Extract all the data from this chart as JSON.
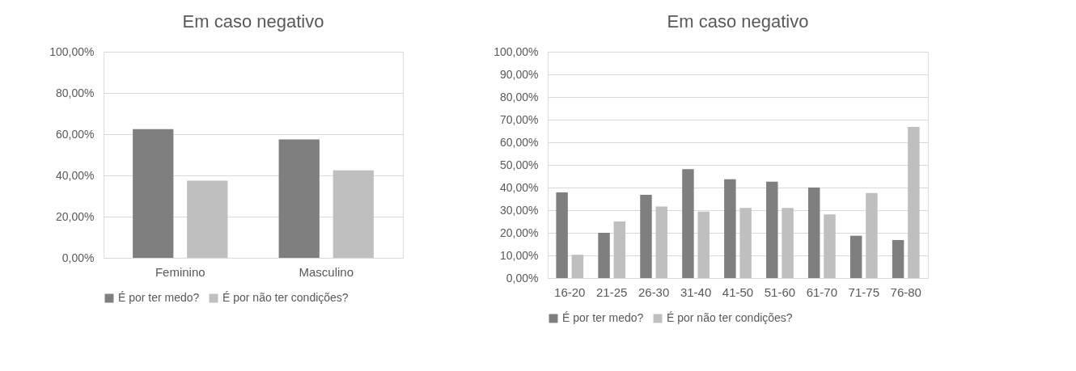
{
  "chart_data": [
    {
      "type": "bar",
      "title": "Em caso negativo",
      "categories": [
        "Feminino",
        "Masculino"
      ],
      "series": [
        {
          "name": "É por ter medo?",
          "color": "#7f7f7f",
          "values": [
            62.5,
            57.5
          ]
        },
        {
          "name": "É por não ter condições?",
          "color": "#bfbfbf",
          "values": [
            37.5,
            42.5
          ]
        }
      ],
      "ylim": [
        0,
        100
      ],
      "yticks": [
        {
          "value": 0,
          "label": "0,00%"
        },
        {
          "value": 20,
          "label": "20,00%"
        },
        {
          "value": 40,
          "label": "40,00%"
        },
        {
          "value": 60,
          "label": "60,00%"
        },
        {
          "value": 80,
          "label": "80,00%"
        },
        {
          "value": 100,
          "label": "100,00%"
        }
      ],
      "grid": "y",
      "legend": "bottom"
    },
    {
      "type": "bar",
      "title": "Em caso negativo",
      "categories": [
        "16-20",
        "21-25",
        "26-30",
        "31-40",
        "41-50",
        "51-60",
        "61-70",
        "71-75",
        "76-80"
      ],
      "series": [
        {
          "name": "É por ter medo?",
          "color": "#7f7f7f",
          "values": [
            37.9,
            20.0,
            36.8,
            48.1,
            43.7,
            42.6,
            40.0,
            18.7,
            16.8
          ]
        },
        {
          "name": "É por não ter condições?",
          "color": "#bfbfbf",
          "values": [
            10.3,
            25.0,
            31.6,
            29.4,
            31.0,
            31.0,
            28.1,
            37.6,
            66.8
          ]
        }
      ],
      "ylim": [
        0,
        100
      ],
      "yticks": [
        {
          "value": 0,
          "label": "0,00%"
        },
        {
          "value": 10,
          "label": "10,00%"
        },
        {
          "value": 20,
          "label": "20,00%"
        },
        {
          "value": 30,
          "label": "30,00%"
        },
        {
          "value": 40,
          "label": "40,00%"
        },
        {
          "value": 50,
          "label": "50,00%"
        },
        {
          "value": 60,
          "label": "60,00%"
        },
        {
          "value": 70,
          "label": "70,00%"
        },
        {
          "value": 80,
          "label": "80,00%"
        },
        {
          "value": 90,
          "label": "90,00%"
        },
        {
          "value": 100,
          "label": "100,00%"
        }
      ],
      "grid": "y",
      "legend": "bottom"
    }
  ]
}
